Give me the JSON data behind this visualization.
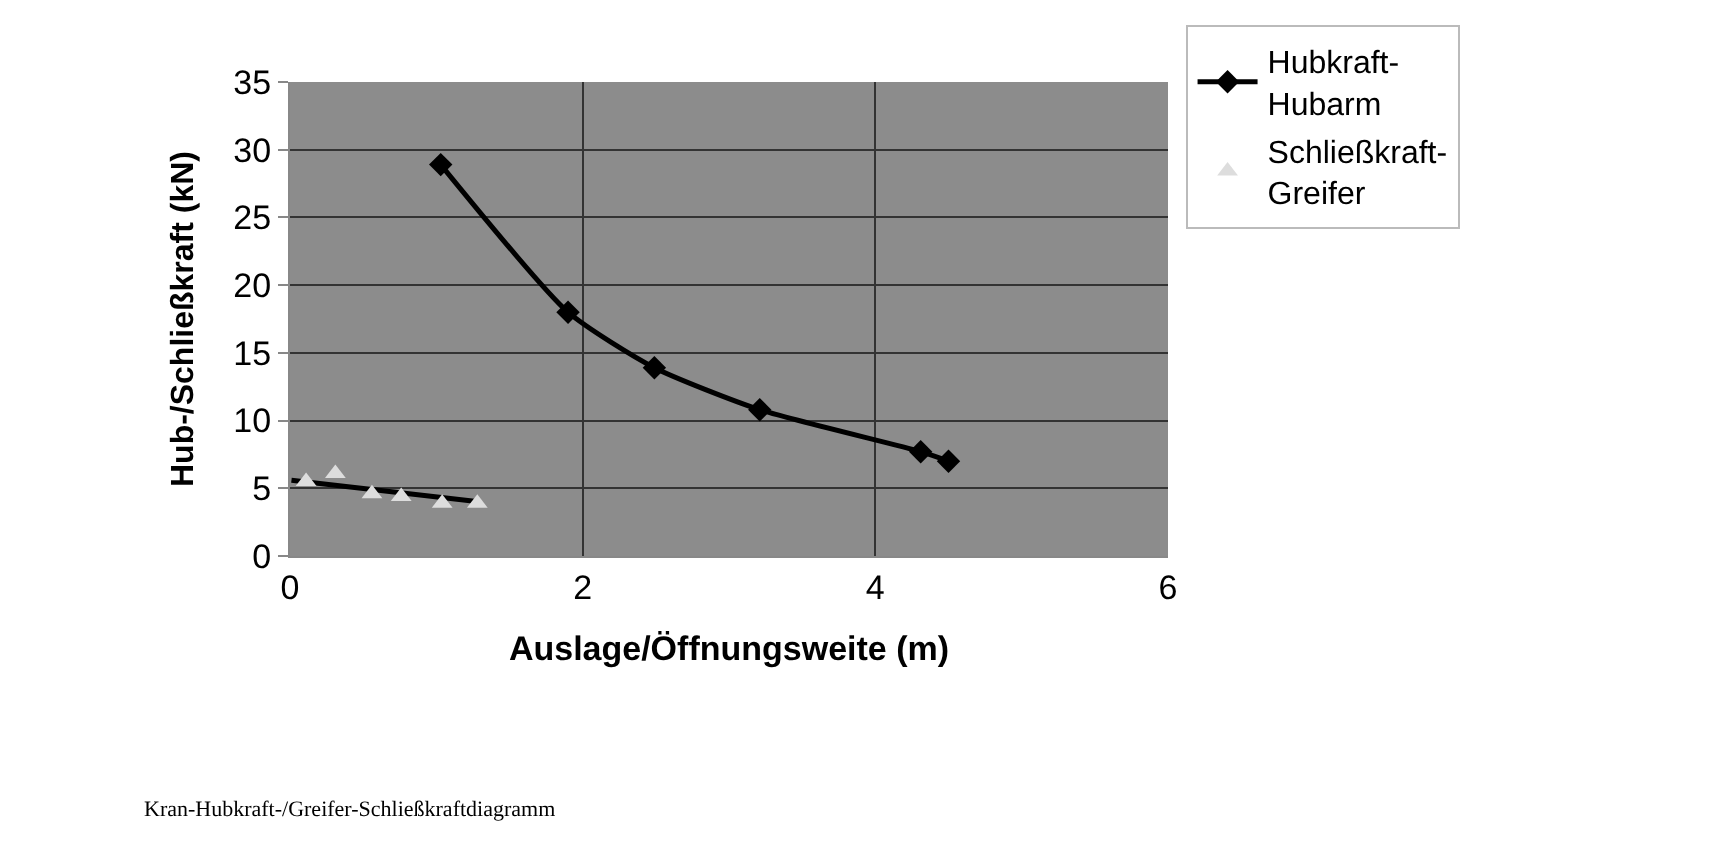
{
  "chart_data": {
    "type": "scatter",
    "xlabel": "Auslage/Öffnungsweite (m)",
    "ylabel": "Hub-/Schließkraft (kN)",
    "xlim": [
      0,
      6
    ],
    "xticks": [
      0,
      2,
      4,
      6
    ],
    "ylim": [
      0,
      35
    ],
    "yticks": [
      0,
      5,
      10,
      15,
      20,
      25,
      30,
      35
    ],
    "grid": true,
    "legend": "top right",
    "series": [
      {
        "name": "Hubkraft-Hubarm",
        "type": "line",
        "marker": "diamond",
        "line_style": "solid",
        "color": "#000000",
        "x": [
          1.03,
          1.9,
          2.49,
          3.21,
          4.31,
          4.5
        ],
        "values": [
          28.9,
          18.0,
          13.9,
          10.8,
          7.7,
          7.0
        ]
      },
      {
        "name": "Schließkraft-Greifer",
        "marker": "triangle",
        "color": "#dddddd",
        "x": [
          0.11,
          0.31,
          0.56,
          0.76,
          1.04,
          1.28
        ],
        "values": [
          5.5,
          6.1,
          4.6,
          4.4,
          3.9,
          3.9
        ]
      },
      {
        "type": "line",
        "marker": "none",
        "line_style": "solid",
        "color": "#000000",
        "x": [
          0.01,
          1.29
        ],
        "values": [
          5.6,
          4.0
        ]
      }
    ],
    "annotations": [
      "Kran-Hubkraft-/Greifer-Schließkraftdiagramm"
    ]
  }
}
